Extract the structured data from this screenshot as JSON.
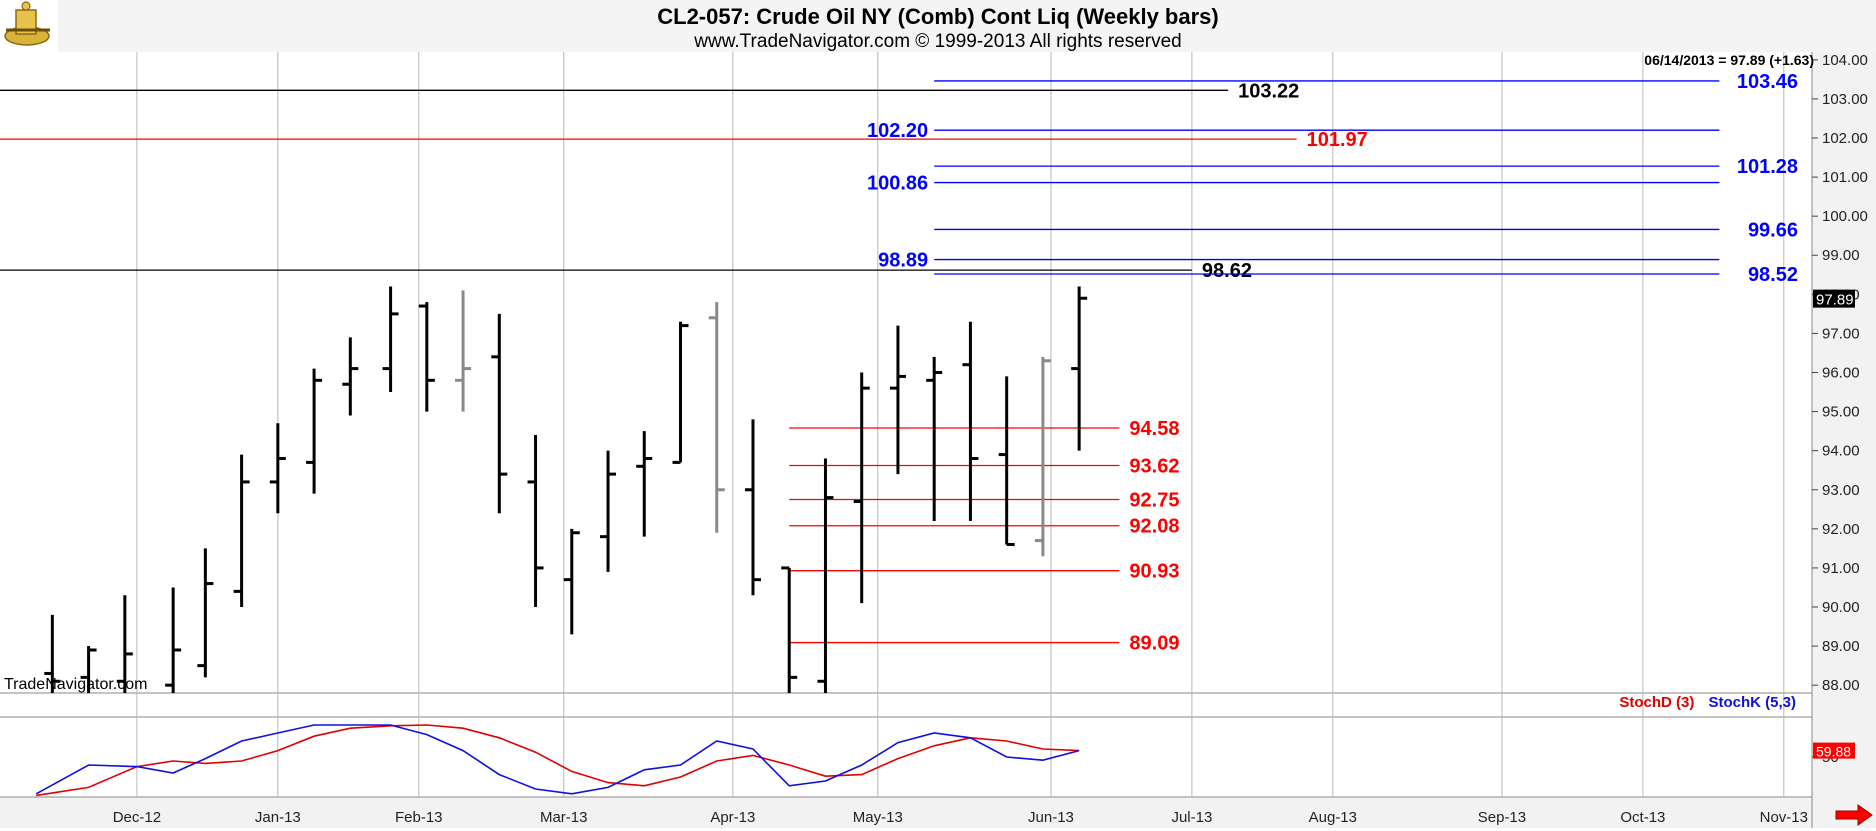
{
  "header": {
    "title": "CL2-057:  Crude Oil NY (Comb) Cont Liq  (Weekly bars)",
    "subtitle": "www.TradeNavigator.com © 1999-2013 All rights reserved"
  },
  "last_quote": "06/14/2013 = 97.89 (+1.63)",
  "watermark": "TradeNavigator.com",
  "colors": {
    "black": "#000000",
    "gray": "#8a8a8a",
    "red": "#ff0000",
    "blue": "#0000ff",
    "stochD": "#e00000",
    "stochK": "#1010e0"
  },
  "chart_data": [
    {
      "type": "ohlc",
      "title": "CL2-057:  Crude Oil NY (Comb) Cont Liq  (Weekly bars)",
      "x_labels": [
        "Dec-12",
        "Jan-13",
        "Feb-13",
        "Mar-13",
        "Apr-13",
        "May-13",
        "Jun-13",
        "Jul-13",
        "Aug-13",
        "Sep-13",
        "Oct-13",
        "Nov-13"
      ],
      "y_ticks": [
        "104.00",
        "103.00",
        "102.00",
        "101.00",
        "100.00",
        "99.00",
        "98.00",
        "97.00",
        "96.00",
        "95.00",
        "94.00",
        "93.00",
        "92.00",
        "91.00",
        "90.00",
        "89.00",
        "88.00"
      ],
      "ylim": [
        87.8,
        104.2
      ],
      "last_price_label": "97.89",
      "bars": [
        {
          "x": 1.3,
          "h": 89.8,
          "l": 87.8,
          "o": 88.3,
          "c": 88.1,
          "color": "black"
        },
        {
          "x": 2.2,
          "h": 89.0,
          "l": 87.8,
          "o": 88.2,
          "c": 88.9,
          "color": "black"
        },
        {
          "x": 3.1,
          "h": 90.3,
          "l": 87.8,
          "o": 88.1,
          "c": 88.8,
          "color": "black"
        },
        {
          "x": 4.3,
          "h": 90.5,
          "l": 87.8,
          "o": 88.0,
          "c": 88.9,
          "color": "black"
        },
        {
          "x": 5.1,
          "h": 91.5,
          "l": 88.2,
          "o": 88.5,
          "c": 90.6,
          "color": "black"
        },
        {
          "x": 6.0,
          "h": 93.9,
          "l": 90.0,
          "o": 90.4,
          "c": 93.2,
          "color": "black"
        },
        {
          "x": 6.9,
          "h": 94.7,
          "l": 92.4,
          "o": 93.2,
          "c": 93.8,
          "color": "black"
        },
        {
          "x": 7.8,
          "h": 96.1,
          "l": 92.9,
          "o": 93.7,
          "c": 95.8,
          "color": "black"
        },
        {
          "x": 8.7,
          "h": 96.9,
          "l": 94.9,
          "o": 95.7,
          "c": 96.1,
          "color": "black"
        },
        {
          "x": 9.7,
          "h": 98.2,
          "l": 95.5,
          "o": 96.1,
          "c": 97.5,
          "color": "black"
        },
        {
          "x": 10.6,
          "h": 97.8,
          "l": 95.0,
          "o": 97.7,
          "c": 95.8,
          "color": "black"
        },
        {
          "x": 11.5,
          "h": 98.1,
          "l": 95.0,
          "o": 95.8,
          "c": 96.1,
          "color": "gray"
        },
        {
          "x": 12.4,
          "h": 97.5,
          "l": 92.4,
          "o": 96.4,
          "c": 93.4,
          "color": "black"
        },
        {
          "x": 13.3,
          "h": 94.4,
          "l": 90.0,
          "o": 93.2,
          "c": 91.0,
          "color": "black"
        },
        {
          "x": 14.2,
          "h": 92.0,
          "l": 89.3,
          "o": 90.7,
          "c": 91.9,
          "color": "black"
        },
        {
          "x": 15.1,
          "h": 94.0,
          "l": 90.9,
          "o": 91.8,
          "c": 93.4,
          "color": "black"
        },
        {
          "x": 16.0,
          "h": 94.5,
          "l": 91.8,
          "o": 93.6,
          "c": 93.8,
          "color": "black"
        },
        {
          "x": 16.9,
          "h": 97.3,
          "l": 93.7,
          "o": 93.7,
          "c": 97.2,
          "color": "black"
        },
        {
          "x": 17.8,
          "h": 97.8,
          "l": 91.9,
          "o": 97.4,
          "c": 93.0,
          "color": "gray"
        },
        {
          "x": 18.7,
          "h": 94.8,
          "l": 90.3,
          "o": 93.0,
          "c": 90.7,
          "color": "black"
        },
        {
          "x": 19.6,
          "h": 91.0,
          "l": 87.8,
          "o": 91.0,
          "c": 88.2,
          "color": "black"
        },
        {
          "x": 20.5,
          "h": 93.8,
          "l": 87.8,
          "o": 88.1,
          "c": 92.8,
          "color": "black"
        },
        {
          "x": 21.4,
          "h": 96.0,
          "l": 90.1,
          "o": 92.7,
          "c": 95.6,
          "color": "black"
        },
        {
          "x": 22.3,
          "h": 97.2,
          "l": 93.4,
          "o": 95.6,
          "c": 95.9,
          "color": "black"
        },
        {
          "x": 23.2,
          "h": 96.4,
          "l": 92.2,
          "o": 95.8,
          "c": 96.0,
          "color": "black"
        },
        {
          "x": 24.1,
          "h": 97.3,
          "l": 92.2,
          "o": 96.2,
          "c": 93.8,
          "color": "black"
        },
        {
          "x": 25.0,
          "h": 95.9,
          "l": 91.6,
          "o": 93.9,
          "c": 91.6,
          "color": "black"
        },
        {
          "x": 25.9,
          "h": 96.4,
          "l": 91.3,
          "o": 91.7,
          "c": 96.3,
          "color": "gray"
        },
        {
          "x": 26.8,
          "h": 98.2,
          "l": 94.0,
          "o": 96.1,
          "c": 97.9,
          "color": "black"
        }
      ],
      "levels": [
        {
          "price": 103.46,
          "label": "103.46",
          "color": "blue",
          "x0": 23.2,
          "x1": 42.7,
          "label_side": "axis"
        },
        {
          "price": 103.22,
          "label": "103.22",
          "color": "black",
          "x0": 0.0,
          "x1": 30.5,
          "label_side": "right"
        },
        {
          "price": 102.2,
          "label": "102.20",
          "color": "blue",
          "x0": 23.2,
          "x1": 42.7,
          "label_side": "left"
        },
        {
          "price": 101.97,
          "label": "101.97",
          "color": "red",
          "x0": 0.0,
          "x1": 32.2,
          "label_side": "right"
        },
        {
          "price": 101.28,
          "label": "101.28",
          "color": "blue",
          "x0": 23.2,
          "x1": 42.7,
          "label_side": "axis"
        },
        {
          "price": 100.86,
          "label": "100.86",
          "color": "blue",
          "x0": 23.2,
          "x1": 42.7,
          "label_side": "left"
        },
        {
          "price": 99.66,
          "label": "99.66",
          "color": "blue",
          "x0": 23.2,
          "x1": 42.7,
          "label_side": "axis"
        },
        {
          "price": 98.89,
          "label": "98.89",
          "color": "blue",
          "x0": 23.2,
          "x1": 42.7,
          "label_side": "left"
        },
        {
          "price": 98.62,
          "label": "98.62",
          "color": "black",
          "x0": 0.0,
          "x1": 29.6,
          "label_side": "right"
        },
        {
          "price": 98.52,
          "label": "98.52",
          "color": "blue",
          "x0": 23.2,
          "x1": 42.7,
          "label_side": "axis"
        },
        {
          "price": 94.58,
          "label": "94.58",
          "color": "red",
          "x0": 19.6,
          "x1": 27.8,
          "label_side": "right"
        },
        {
          "price": 93.62,
          "label": "93.62",
          "color": "red",
          "x0": 19.6,
          "x1": 27.8,
          "label_side": "right"
        },
        {
          "price": 92.75,
          "label": "92.75",
          "color": "red",
          "x0": 19.6,
          "x1": 27.8,
          "label_side": "right"
        },
        {
          "price": 92.08,
          "label": "92.08",
          "color": "red",
          "x0": 19.6,
          "x1": 27.8,
          "label_side": "right"
        },
        {
          "price": 90.93,
          "label": "90.93",
          "color": "red",
          "x0": 19.6,
          "x1": 27.8,
          "label_side": "right"
        },
        {
          "price": 89.09,
          "label": "89.09",
          "color": "red",
          "x0": 19.6,
          "x1": 27.8,
          "label_side": "right"
        }
      ],
      "x_tick_positions": [
        3.4,
        6.9,
        10.4,
        14.0,
        18.2,
        21.8,
        26.1,
        29.6,
        33.1,
        37.3,
        40.8,
        44.3
      ],
      "x_range": [
        0,
        45
      ]
    },
    {
      "type": "line",
      "title": "",
      "legend": [
        "StochD (3)",
        "StochK (5,3)"
      ],
      "ylim": [
        0,
        100
      ],
      "y_ticks": [
        "50"
      ],
      "last_labels": [
        "59.88"
      ],
      "series": [
        {
          "name": "StochD (3)",
          "color": "stochD",
          "x": [
            0.9,
            2.2,
            3.4,
            4.3,
            5.1,
            6.0,
            6.9,
            7.8,
            8.7,
            9.7,
            10.6,
            11.5,
            12.4,
            13.3,
            14.2,
            15.1,
            16.0,
            16.9,
            17.8,
            18.7,
            19.6,
            20.5,
            21.4,
            22.3,
            23.2,
            24.1,
            25.0,
            25.9,
            26.8
          ],
          "values": [
            2,
            12,
            38,
            45,
            42,
            45,
            58,
            76,
            86,
            89,
            90,
            86,
            74,
            56,
            32,
            18,
            14,
            25,
            45,
            52,
            40,
            26,
            28,
            48,
            64,
            74,
            70,
            60,
            58
          ]
        },
        {
          "name": "StochK (5,3)",
          "color": "stochK",
          "x": [
            0.9,
            2.2,
            3.4,
            4.3,
            5.1,
            6.0,
            6.9,
            7.8,
            8.7,
            9.7,
            10.6,
            11.5,
            12.4,
            13.3,
            14.2,
            15.1,
            16.0,
            16.9,
            17.8,
            18.7,
            19.6,
            20.5,
            21.4,
            22.3,
            23.2,
            24.1,
            25.0,
            25.9,
            26.8
          ],
          "values": [
            4,
            40,
            38,
            30,
            48,
            70,
            80,
            90,
            90,
            90,
            78,
            58,
            28,
            10,
            4,
            12,
            34,
            40,
            70,
            60,
            14,
            20,
            40,
            68,
            80,
            74,
            50,
            46,
            58
          ]
        }
      ]
    }
  ]
}
